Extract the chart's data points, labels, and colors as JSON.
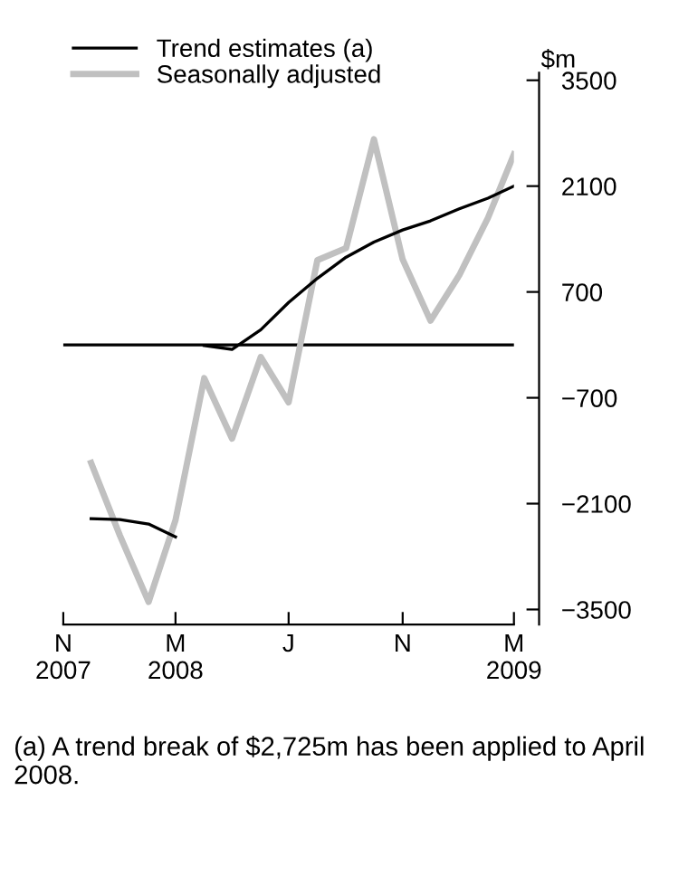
{
  "chart_data": {
    "type": "line",
    "ylabel": "$m",
    "x": [
      "2007-12",
      "2008-01",
      "2008-02",
      "2008-03",
      "2008-04",
      "2008-05",
      "2008-06",
      "2008-07",
      "2008-08",
      "2008-09",
      "2008-10",
      "2008-11",
      "2008-12",
      "2009-01",
      "2009-02",
      "2009-03"
    ],
    "series": [
      {
        "name": "Trend estimates (a)",
        "color": "#000000",
        "x": [
          "2007-12",
          "2008-01",
          "2008-02",
          "2008-03"
        ],
        "values": [
          -2300,
          -2310,
          -2370,
          -2540
        ]
      },
      {
        "color": "#000000",
        "x": [
          "2008-04",
          "2008-05",
          "2008-06",
          "2008-07",
          "2008-08",
          "2008-09",
          "2008-10",
          "2008-11",
          "2008-12",
          "2009-01",
          "2009-02",
          "2009-03"
        ],
        "values": [
          -10,
          -60,
          200,
          560,
          880,
          1160,
          1360,
          1520,
          1640,
          1800,
          1940,
          2100
        ]
      },
      {
        "name": "Seasonally adjusted",
        "color": "#c0c0c0",
        "values": [
          -1560,
          -2520,
          -3400,
          -2320,
          -440,
          -1240,
          -160,
          -760,
          1120,
          1280,
          2720,
          1130,
          320,
          920,
          1680,
          2520
        ]
      }
    ],
    "xlim": [
      "2007-11",
      "2009-03"
    ],
    "xticks": [
      {
        "value": "2007-11",
        "label": "N\n2007"
      },
      {
        "value": "2008-03",
        "label": "M\n2008"
      },
      {
        "value": "2008-07",
        "label": "J"
      },
      {
        "value": "2008-11",
        "label": "N"
      },
      {
        "value": "2009-03",
        "label": "M\n2009"
      }
    ],
    "ylim": [
      -3700,
      3600
    ],
    "yticks": [
      -3500,
      -2100,
      -700,
      700,
      2100,
      3500
    ],
    "ref_lines": [
      {
        "axis": "y",
        "value": 0,
        "color": "#000000"
      }
    ],
    "legend": "top left",
    "grid": false,
    "annotations": [
      "(a) A trend break of $2,725m has been applied to April 2008."
    ]
  }
}
